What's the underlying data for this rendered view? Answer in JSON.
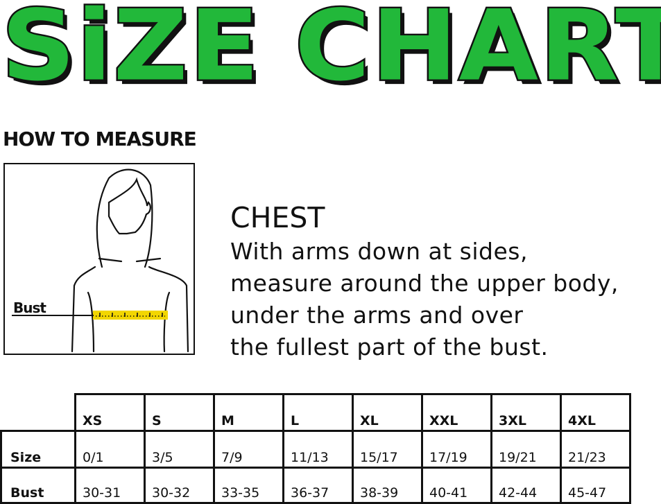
{
  "title": {
    "word1": "SiZE",
    "word2": "CHART",
    "fill_color": "#22b83a"
  },
  "how_to_measure": "HOW TO MEASURE",
  "figure": {
    "label": "Bust",
    "tape_color": "#f2d600"
  },
  "instructions": {
    "heading": "CHEST",
    "lines": [
      "With arms down at sides,",
      "measure around the upper body,",
      "under the arms and over",
      "the fullest part of the bust."
    ]
  },
  "table": {
    "columns": [
      "XS",
      "S",
      "M",
      "L",
      "XL",
      "XXL",
      "3XL",
      "4XL"
    ],
    "rows": [
      {
        "label": "Size",
        "values": [
          "0/1",
          "3/5",
          "7/9",
          "11/13",
          "15/17",
          "17/19",
          "19/21",
          "21/23"
        ]
      },
      {
        "label": "Bust",
        "values": [
          "30-31",
          "30-32",
          "33-35",
          "36-37",
          "38-39",
          "40-41",
          "42-44",
          "45-47"
        ]
      }
    ]
  }
}
